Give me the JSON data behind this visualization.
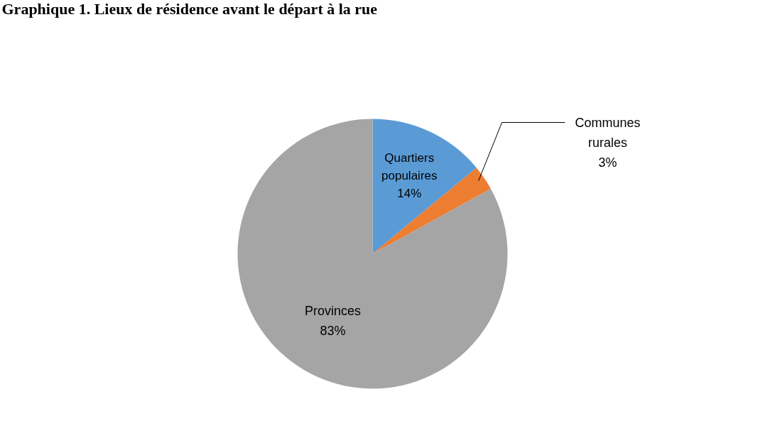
{
  "chart_data": {
    "type": "pie",
    "title": "Graphique 1. Lieux de résidence avant le départ à la rue",
    "categories": [
      "Quartiers populaires",
      "Communes rurales",
      "Provinces"
    ],
    "values": [
      14,
      3,
      83
    ],
    "colors": [
      "#5b9bd5",
      "#ed7d31",
      "#a5a5a5"
    ],
    "value_labels": [
      "14%",
      "3%",
      "83%"
    ]
  }
}
